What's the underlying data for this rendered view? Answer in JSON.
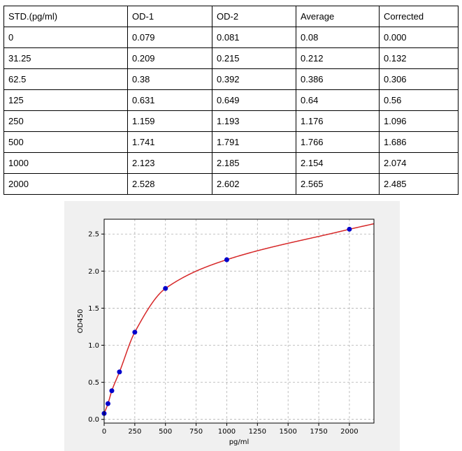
{
  "table": {
    "headers": [
      "STD.(pg/ml)",
      "OD-1",
      "OD-2",
      "Average",
      "Corrected"
    ],
    "rows": [
      [
        "0",
        "0.079",
        "0.081",
        "0.08",
        "0.000"
      ],
      [
        "31.25",
        "0.209",
        "0.215",
        "0.212",
        "0.132"
      ],
      [
        "62.5",
        "0.38",
        "0.392",
        "0.386",
        "0.306"
      ],
      [
        "125",
        "0.631",
        "0.649",
        "0.64",
        "0.56"
      ],
      [
        "250",
        "1.159",
        "1.193",
        "1.176",
        "1.096"
      ],
      [
        "500",
        "1.741",
        "1.791",
        "1.766",
        "1.686"
      ],
      [
        "1000",
        "2.123",
        "2.185",
        "2.154",
        "2.074"
      ],
      [
        "2000",
        "2.528",
        "2.602",
        "2.565",
        "2.485"
      ]
    ]
  },
  "chart_data": {
    "type": "scatter",
    "title": "",
    "xlabel": "pg/ml",
    "ylabel": "OD450",
    "xlim": [
      0,
      2200
    ],
    "ylim": [
      -0.05,
      2.7
    ],
    "xticks": [
      0,
      250,
      500,
      750,
      1000,
      1250,
      1500,
      1750,
      2000
    ],
    "yticks": [
      0.0,
      0.5,
      1.0,
      1.5,
      2.0,
      2.5
    ],
    "xtick_labels": [
      "0",
      "250",
      "500",
      "750",
      "1000",
      "1250",
      "1500",
      "1750",
      "2000"
    ],
    "ytick_labels": [
      "0.0",
      "0.5",
      "1.0",
      "1.5",
      "2.0",
      "2.5"
    ],
    "grid": true,
    "points": {
      "x": [
        0,
        31.25,
        62.5,
        125,
        250,
        500,
        1000,
        2000
      ],
      "y": [
        0.08,
        0.212,
        0.386,
        0.64,
        1.176,
        1.766,
        2.154,
        2.565
      ],
      "color": "#0000cc"
    },
    "fit_curve": {
      "color": "#d62728"
    },
    "plot_background": "#f0f0f0"
  }
}
